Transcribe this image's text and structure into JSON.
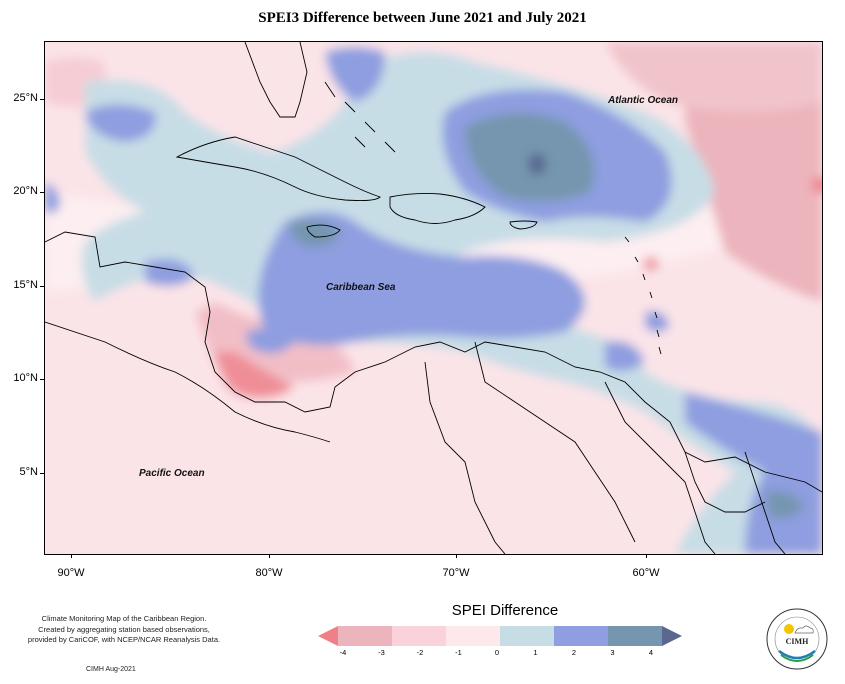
{
  "title": "SPEI3 Difference between June 2021 and July 2021",
  "ocean_labels": {
    "atlantic": "Atlantic Ocean",
    "caribbean": "Caribbean Sea",
    "pacific": "Pacific Ocean"
  },
  "latitude_labels": [
    "25°N",
    "20°N",
    "15°N",
    "10°N",
    "5°N"
  ],
  "longitude_labels": [
    "90°W",
    "80°W",
    "70°W",
    "60°W"
  ],
  "legend": {
    "title": "SPEI Difference",
    "ticks": [
      "-4",
      "-3",
      "-2",
      "-1",
      "0",
      "1",
      "2",
      "3",
      "4"
    ],
    "colors": [
      "#f08088",
      "#ecb4bc",
      "#fad3da",
      "#fde8ec",
      "#c7dde6",
      "#8e9ee0",
      "#7596ae",
      "#5a6891"
    ]
  },
  "footer": {
    "note_line1": "Climate Monitoring Map of the Caribbean Region.",
    "note_line2": "Created by aggregating station based observations,",
    "note_line3": "provided by CariCOF, with NCEP/NCAR Reanalysis Data.",
    "credit": "CIMH Aug-2021"
  },
  "logo": {
    "text": "CIMH",
    "name": "cimh-logo"
  }
}
